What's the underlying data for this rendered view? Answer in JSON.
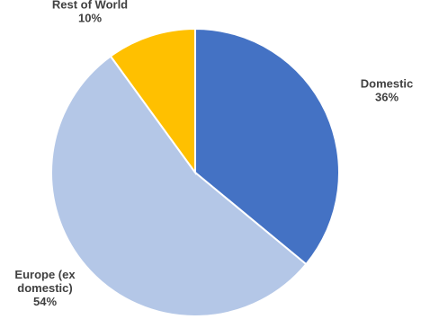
{
  "chart_data": {
    "type": "pie",
    "title": "",
    "slices": [
      {
        "label": [
          "Domestic"
        ],
        "percent_label": "36%",
        "value": 36,
        "color": "#4472c4"
      },
      {
        "label": [
          "Europe (ex",
          "domestic)"
        ],
        "percent_label": "54%",
        "value": 54,
        "color": "#b4c7e7"
      },
      {
        "label": [
          "Rest of World"
        ],
        "percent_label": "10%",
        "value": 10,
        "color": "#ffc000"
      }
    ],
    "start_angle_deg": 0,
    "direction": "clockwise",
    "legend": "none",
    "data_labels": "outside"
  }
}
